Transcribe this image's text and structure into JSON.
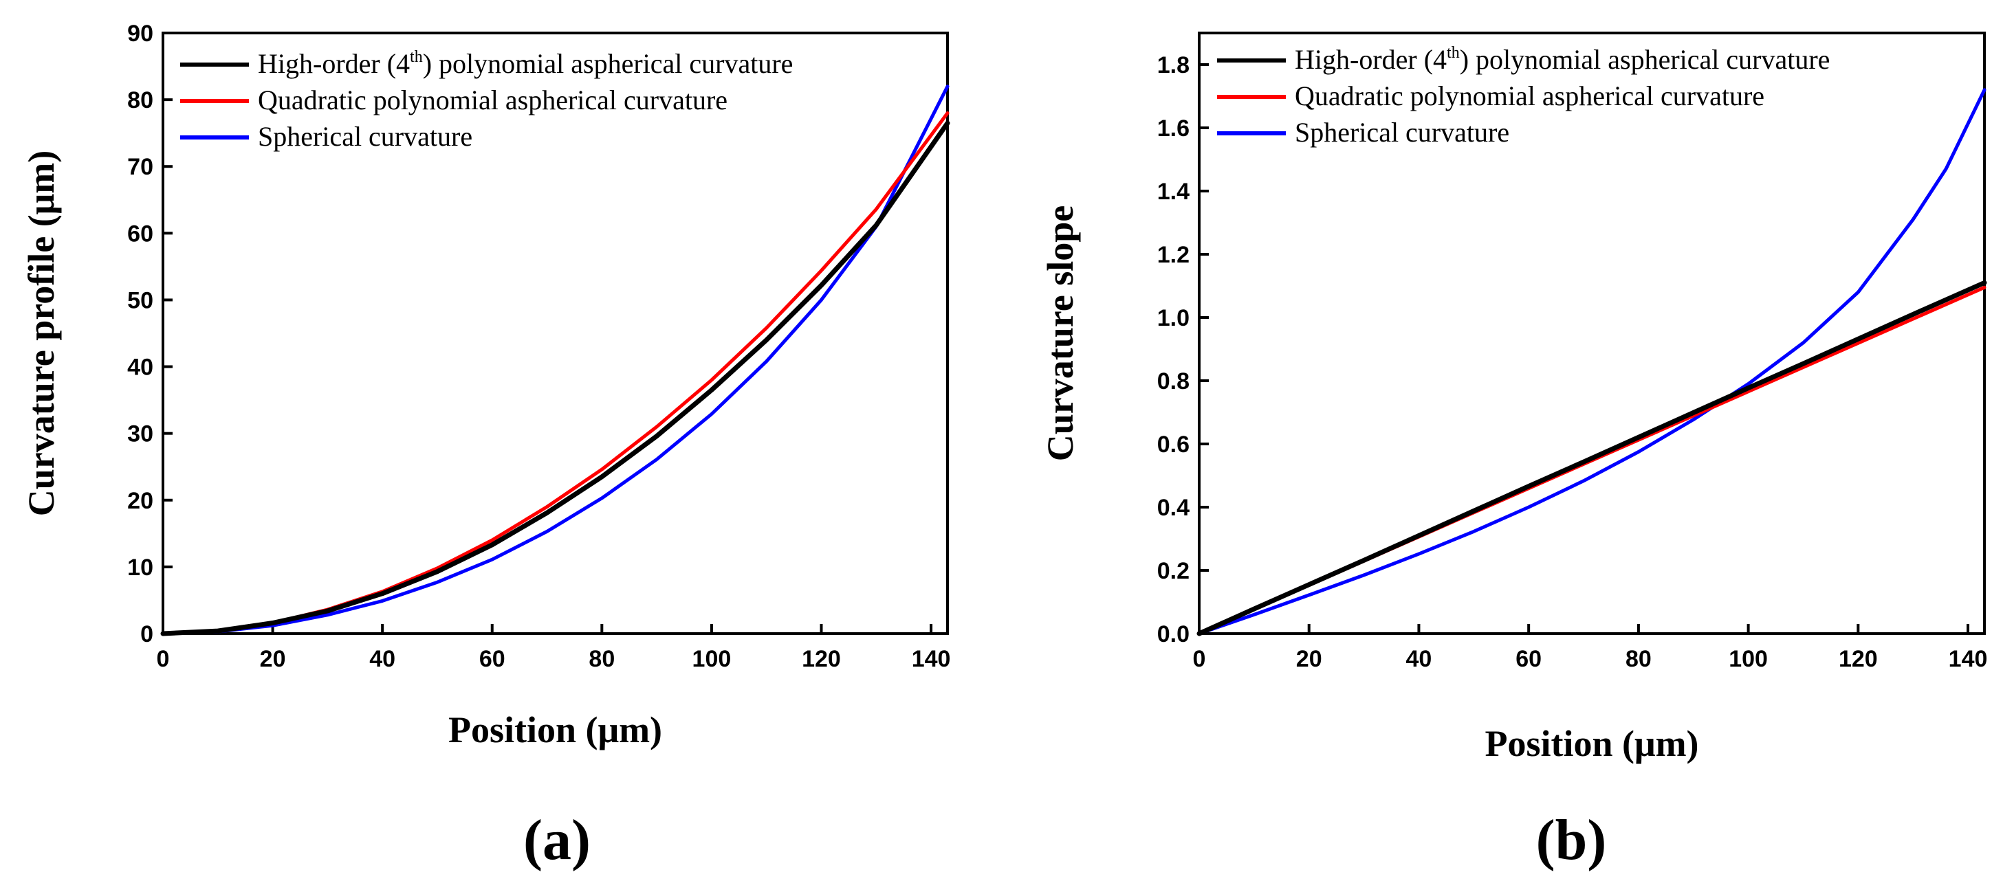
{
  "chart_data": [
    {
      "type": "line",
      "panel_label": "(a)",
      "xlabel": "Position (μm)",
      "ylabel": "Curvature profile (μm)",
      "xlim": [
        0,
        143
      ],
      "ylim": [
        0,
        90
      ],
      "xticks": [
        0,
        20,
        40,
        60,
        80,
        100,
        120,
        140
      ],
      "yticks": [
        0,
        10,
        20,
        30,
        40,
        50,
        60,
        70,
        80,
        90
      ],
      "xtick_labels": [
        "0",
        "20",
        "40",
        "60",
        "80",
        "100",
        "120",
        "140"
      ],
      "ytick_labels": [
        "0",
        "10",
        "20",
        "30",
        "40",
        "50",
        "60",
        "70",
        "80",
        "90"
      ],
      "legend_position": "top-left",
      "series": [
        {
          "name": "High-order (4th) polynomial aspherical curvature",
          "legend_main": "High-order (4",
          "legend_sup": "th",
          "legend_rest": ") polynomial aspherical curvature",
          "color": "#000000",
          "x": [
            0,
            10,
            20,
            30,
            40,
            50,
            60,
            70,
            80,
            90,
            100,
            110,
            120,
            130,
            143
          ],
          "y": [
            0,
            0.4,
            1.6,
            3.4,
            6.0,
            9.3,
            13.3,
            18.1,
            23.5,
            29.6,
            36.5,
            44.0,
            52.2,
            61.2,
            76.5
          ]
        },
        {
          "name": "Quadratic polynomial aspherical curvature",
          "legend_main": "Quadratic polynomial aspherical curvature",
          "color": "#ff0000",
          "x": [
            0,
            10,
            20,
            30,
            40,
            50,
            60,
            70,
            80,
            90,
            100,
            110,
            120,
            130,
            143
          ],
          "y": [
            0,
            0.4,
            1.6,
            3.6,
            6.3,
            9.8,
            14.0,
            19.0,
            24.6,
            31.0,
            38.0,
            45.8,
            54.4,
            63.6,
            78.0
          ]
        },
        {
          "name": "Spherical curvature",
          "legend_main": "Spherical curvature",
          "color": "#0000ff",
          "x": [
            0,
            10,
            20,
            30,
            40,
            50,
            60,
            70,
            80,
            90,
            100,
            110,
            120,
            130,
            143
          ],
          "y": [
            0,
            0.3,
            1.2,
            2.8,
            4.9,
            7.7,
            11.1,
            15.3,
            20.3,
            26.1,
            32.9,
            40.8,
            50.0,
            61.0,
            82.0
          ]
        }
      ]
    },
    {
      "type": "line",
      "panel_label": "(b)",
      "xlabel": "Position (μm)",
      "ylabel": "Curvature slope",
      "xlim": [
        0,
        143
      ],
      "ylim": [
        0,
        1.9
      ],
      "xticks": [
        0,
        20,
        40,
        60,
        80,
        100,
        120,
        140
      ],
      "yticks": [
        0,
        0.2,
        0.4,
        0.6,
        0.8,
        1.0,
        1.2,
        1.4,
        1.6,
        1.8
      ],
      "xtick_labels": [
        "0",
        "20",
        "40",
        "60",
        "80",
        "100",
        "120",
        "140"
      ],
      "ytick_labels": [
        "0.0",
        "0.2",
        "0.4",
        "0.6",
        "0.8",
        "1.0",
        "1.2",
        "1.4",
        "1.6",
        "1.8"
      ],
      "legend_position": "top-left",
      "series": [
        {
          "name": "High-order (4th) polynomial aspherical curvature",
          "legend_main": "High-order (4",
          "legend_sup": "th",
          "legend_rest": ") polynomial aspherical curvature",
          "color": "#000000",
          "x": [
            0,
            10,
            20,
            30,
            40,
            50,
            60,
            70,
            80,
            90,
            100,
            110,
            120,
            130,
            143
          ],
          "y": [
            0,
            0.078,
            0.155,
            0.232,
            0.31,
            0.388,
            0.466,
            0.543,
            0.621,
            0.699,
            0.777,
            0.854,
            0.932,
            1.01,
            1.11
          ]
        },
        {
          "name": "Quadratic polynomial aspherical curvature",
          "legend_main": "Quadratic polynomial aspherical curvature",
          "color": "#ff0000",
          "x": [
            0,
            143
          ],
          "y": [
            0,
            1.095
          ]
        },
        {
          "name": "Spherical curvature",
          "legend_main": "Spherical curvature",
          "color": "#0000ff",
          "x": [
            0,
            10,
            20,
            30,
            40,
            50,
            60,
            70,
            80,
            90,
            100,
            110,
            120,
            130,
            136,
            143
          ],
          "y": [
            0,
            0.06,
            0.122,
            0.185,
            0.252,
            0.323,
            0.4,
            0.483,
            0.575,
            0.677,
            0.79,
            0.92,
            1.08,
            1.31,
            1.47,
            1.72
          ]
        }
      ]
    }
  ]
}
